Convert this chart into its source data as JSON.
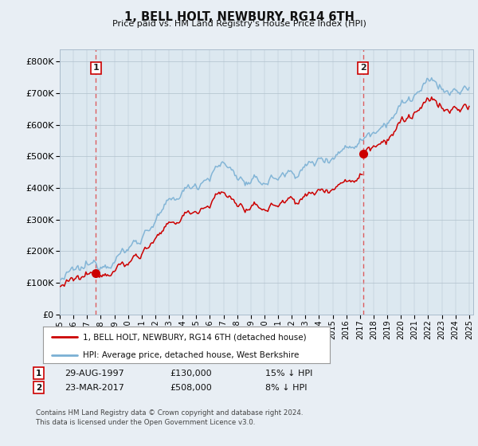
{
  "title": "1, BELL HOLT, NEWBURY, RG14 6TH",
  "subtitle": "Price paid vs. HM Land Registry's House Price Index (HPI)",
  "ytick_values": [
    0,
    100000,
    200000,
    300000,
    400000,
    500000,
    600000,
    700000,
    800000
  ],
  "ylim": [
    0,
    840000
  ],
  "xlim_start": 1995.0,
  "xlim_end": 2025.3,
  "purchase1_x": 1997.65,
  "purchase1_y": 130000,
  "purchase2_x": 2017.23,
  "purchase2_y": 508000,
  "color_price": "#cc0000",
  "color_hpi": "#7ab0d4",
  "color_dashed": "#dd4444",
  "legend_line1": "1, BELL HOLT, NEWBURY, RG14 6TH (detached house)",
  "legend_line2": "HPI: Average price, detached house, West Berkshire",
  "footnote": "Contains HM Land Registry data © Crown copyright and database right 2024.\nThis data is licensed under the Open Government Licence v3.0.",
  "background_color": "#e8eef4",
  "plot_bg_color": "#dce8f0"
}
